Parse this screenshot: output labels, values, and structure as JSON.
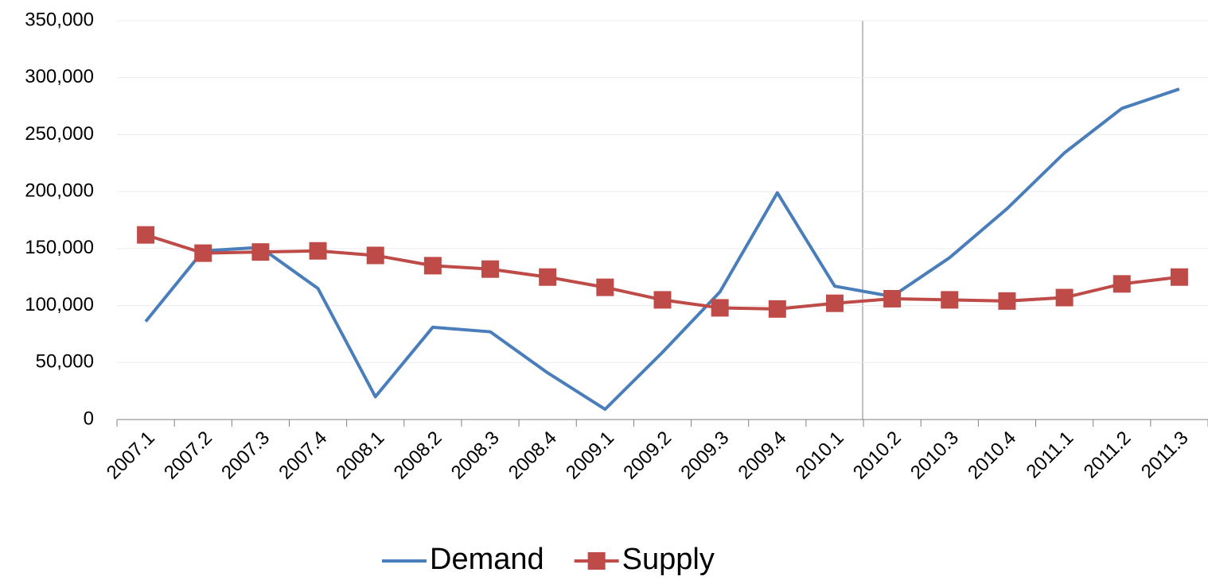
{
  "chart_data": {
    "type": "line",
    "categories": [
      "2007.1",
      "2007.2",
      "2007.3",
      "2007.4",
      "2008.1",
      "2008.2",
      "2008.3",
      "2008.4",
      "2009.1",
      "2009.2",
      "2009.3",
      "2009.4",
      "2010.1",
      "2010.2",
      "2010.3",
      "2010.4",
      "2011.1",
      "2011.2",
      "2011.3"
    ],
    "series": [
      {
        "name": "Demand",
        "color": "#4a7ebb",
        "marker": "none",
        "values": [
          86000,
          148000,
          151000,
          115000,
          20000,
          81000,
          77000,
          41000,
          9000,
          59000,
          112000,
          199000,
          117000,
          108000,
          142000,
          185000,
          234000,
          273000,
          290000
        ]
      },
      {
        "name": "Supply",
        "color": "#be4b48",
        "marker": "square",
        "values": [
          162000,
          146000,
          147000,
          148000,
          144000,
          135000,
          132000,
          125000,
          116000,
          105000,
          98000,
          97000,
          102000,
          106000,
          105000,
          104000,
          107000,
          119000,
          125000
        ]
      }
    ],
    "ylim": [
      0,
      350000
    ],
    "yticks": [
      0,
      {
        "value": 50000,
        "label": "50,000"
      },
      {
        "value": 100000,
        "label": "100,000"
      },
      {
        "value": 150000,
        "label": "150,000"
      },
      {
        "value": 200000,
        "label": "200,000"
      },
      {
        "value": 250000,
        "label": "250,000"
      },
      {
        "value": 300000,
        "label": "300,000"
      },
      {
        "value": 350000,
        "label": "350,000"
      }
    ],
    "grid": true,
    "legend": "bottom"
  }
}
